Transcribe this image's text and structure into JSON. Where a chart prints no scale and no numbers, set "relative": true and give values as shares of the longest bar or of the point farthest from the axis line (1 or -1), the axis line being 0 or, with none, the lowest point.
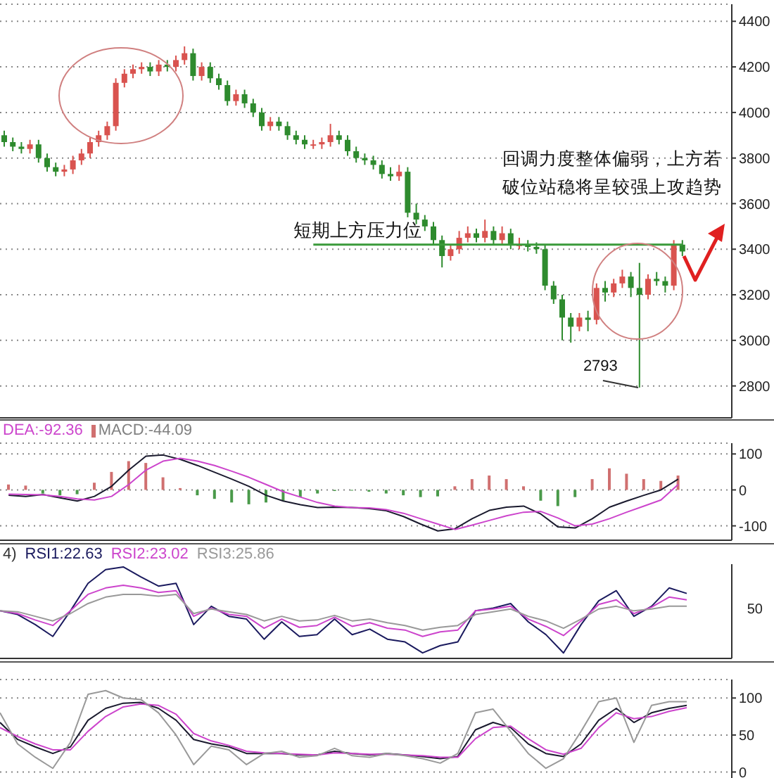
{
  "chart_data": [
    {
      "type": "candlestick",
      "categories": [
        null,
        null,
        null,
        null,
        null,
        null,
        null,
        null,
        null,
        null,
        null,
        null,
        null,
        null,
        null,
        null,
        null,
        null,
        null,
        null,
        null,
        null,
        null,
        null,
        null,
        null,
        null,
        null,
        null,
        null,
        null,
        null,
        null,
        null,
        null,
        null,
        null,
        null,
        null,
        null,
        null,
        null,
        null,
        null,
        null,
        null,
        null,
        null,
        null,
        null,
        null,
        null,
        null,
        null,
        null,
        null,
        null,
        null,
        null,
        null,
        null,
        null,
        null,
        null,
        null,
        null,
        null,
        null,
        null,
        null,
        null,
        null,
        null,
        null,
        null,
        null,
        null,
        null,
        null,
        null
      ],
      "ohlc": [
        [
          3900,
          3920,
          3850,
          3870
        ],
        [
          3870,
          3890,
          3830,
          3850
        ],
        [
          3850,
          3870,
          3820,
          3840
        ],
        [
          3840,
          3880,
          3820,
          3860
        ],
        [
          3860,
          3880,
          3780,
          3800
        ],
        [
          3800,
          3820,
          3740,
          3760
        ],
        [
          3760,
          3780,
          3720,
          3740
        ],
        [
          3740,
          3770,
          3720,
          3750
        ],
        [
          3750,
          3810,
          3730,
          3790
        ],
        [
          3790,
          3840,
          3770,
          3820
        ],
        [
          3820,
          3890,
          3800,
          3870
        ],
        [
          3870,
          3920,
          3850,
          3900
        ],
        [
          3900,
          3960,
          3880,
          3940
        ],
        [
          3940,
          4150,
          3920,
          4130
        ],
        [
          4130,
          4190,
          4110,
          4170
        ],
        [
          4170,
          4210,
          4150,
          4190
        ],
        [
          4190,
          4220,
          4170,
          4200
        ],
        [
          4200,
          4220,
          4160,
          4180
        ],
        [
          4180,
          4230,
          4160,
          4210
        ],
        [
          4210,
          4230,
          4180,
          4200
        ],
        [
          4200,
          4250,
          4180,
          4230
        ],
        [
          4230,
          4290,
          4210,
          4260
        ],
        [
          4260,
          4280,
          4140,
          4160
        ],
        [
          4160,
          4220,
          4140,
          4200
        ],
        [
          4200,
          4220,
          4130,
          4150
        ],
        [
          4150,
          4170,
          4100,
          4120
        ],
        [
          4120,
          4140,
          4030,
          4050
        ],
        [
          4050,
          4100,
          4030,
          4080
        ],
        [
          4080,
          4100,
          4020,
          4040
        ],
        [
          4040,
          4060,
          3980,
          4000
        ],
        [
          4000,
          4020,
          3920,
          3940
        ],
        [
          3940,
          3980,
          3920,
          3960
        ],
        [
          3960,
          3980,
          3920,
          3940
        ],
        [
          3940,
          3960,
          3880,
          3900
        ],
        [
          3900,
          3920,
          3860,
          3880
        ],
        [
          3880,
          3900,
          3840,
          3860
        ],
        [
          3860,
          3880,
          3840,
          3860
        ],
        [
          3860,
          3890,
          3840,
          3870
        ],
        [
          3870,
          3950,
          3850,
          3900
        ],
        [
          3900,
          3920,
          3860,
          3880
        ],
        [
          3880,
          3900,
          3810,
          3830
        ],
        [
          3830,
          3850,
          3780,
          3800
        ],
        [
          3800,
          3820,
          3770,
          3790
        ],
        [
          3790,
          3810,
          3750,
          3770
        ],
        [
          3770,
          3790,
          3710,
          3730
        ],
        [
          3730,
          3760,
          3700,
          3720
        ],
        [
          3720,
          3770,
          3700,
          3740
        ],
        [
          3740,
          3760,
          3540,
          3560
        ],
        [
          3560,
          3600,
          3510,
          3530
        ],
        [
          3530,
          3550,
          3480,
          3500
        ],
        [
          3500,
          3520,
          3420,
          3440
        ],
        [
          3440,
          3460,
          3320,
          3370
        ],
        [
          3370,
          3420,
          3350,
          3400
        ],
        [
          3400,
          3480,
          3380,
          3450
        ],
        [
          3450,
          3500,
          3430,
          3470
        ],
        [
          3470,
          3490,
          3430,
          3450
        ],
        [
          3450,
          3530,
          3430,
          3480
        ],
        [
          3480,
          3500,
          3420,
          3440
        ],
        [
          3440,
          3500,
          3420,
          3470
        ],
        [
          3470,
          3490,
          3400,
          3420
        ],
        [
          3420,
          3450,
          3400,
          3420
        ],
        [
          3420,
          3440,
          3390,
          3410
        ],
        [
          3410,
          3430,
          3380,
          3400
        ],
        [
          3400,
          3420,
          3220,
          3240
        ],
        [
          3240,
          3260,
          3160,
          3180
        ],
        [
          3180,
          3200,
          3000,
          3100
        ],
        [
          3100,
          3120,
          2990,
          3060
        ],
        [
          3060,
          3120,
          3040,
          3100
        ],
        [
          3100,
          3130,
          3040,
          3090
        ],
        [
          3090,
          3250,
          3070,
          3230
        ],
        [
          3230,
          3260,
          3170,
          3210
        ],
        [
          3210,
          3270,
          3190,
          3250
        ],
        [
          3250,
          3310,
          3230,
          3280
        ],
        [
          3280,
          3300,
          3190,
          3230
        ],
        [
          3230,
          3340,
          2793,
          3200
        ],
        [
          3200,
          3290,
          3180,
          3270
        ],
        [
          3270,
          3300,
          3240,
          3260
        ],
        [
          3260,
          3280,
          3210,
          3240
        ],
        [
          3240,
          3440,
          3220,
          3420
        ],
        [
          3420,
          3440,
          3370,
          3390
        ]
      ],
      "colors": [
        "#2e8b2e",
        "#2e8b2e",
        "#2e8b2e",
        "#d9534f",
        "#2e8b2e",
        "#2e8b2e",
        "#2e8b2e",
        "#d9534f",
        "#d9534f",
        "#d9534f",
        "#d9534f",
        "#d9534f",
        "#d9534f",
        "#d9534f",
        "#d9534f",
        "#d9534f",
        "#d9534f",
        "#2e8b2e",
        "#d9534f",
        "#2e8b2e",
        "#d9534f",
        "#d9534f",
        "#2e8b2e",
        "#d9534f",
        "#2e8b2e",
        "#2e8b2e",
        "#2e8b2e",
        "#d9534f",
        "#2e8b2e",
        "#2e8b2e",
        "#2e8b2e",
        "#d9534f",
        "#2e8b2e",
        "#2e8b2e",
        "#2e8b2e",
        "#2e8b2e",
        "#d9534f",
        "#d9534f",
        "#d9534f",
        "#2e8b2e",
        "#2e8b2e",
        "#2e8b2e",
        "#2e8b2e",
        "#2e8b2e",
        "#2e8b2e",
        "#2e8b2e",
        "#d9534f",
        "#2e8b2e",
        "#2e8b2e",
        "#2e8b2e",
        "#2e8b2e",
        "#2e8b2e",
        "#d9534f",
        "#d9534f",
        "#d9534f",
        "#2e8b2e",
        "#d9534f",
        "#2e8b2e",
        "#d9534f",
        "#2e8b2e",
        "#d9534f",
        "#2e8b2e",
        "#2e8b2e",
        "#2e8b2e",
        "#2e8b2e",
        "#2e8b2e",
        "#2e8b2e",
        "#d9534f",
        "#2e8b2e",
        "#d9534f",
        "#2e8b2e",
        "#d9534f",
        "#d9534f",
        "#2e8b2e",
        "#2e8b2e",
        "#d9534f",
        "#2e8b2e",
        "#2e8b2e",
        "#d9534f",
        "#2e8b2e"
      ],
      "ylim": [
        2660,
        4475
      ],
      "yticks": [
        2800,
        3000,
        3200,
        3400,
        3600,
        3800,
        4000,
        4200,
        4400
      ],
      "grid": "y",
      "tick_labels": "y",
      "ref_lines": [
        {
          "axis": "y",
          "value": 3420,
          "label": "短期上方压力位",
          "color": "#3a9a3a"
        }
      ],
      "annotations": [
        "回调力度整体偏弱，上方若破位站稳将呈较强上攻趋势",
        "2793"
      ]
    },
    {
      "type": "line",
      "categories": [
        null,
        null,
        null,
        null,
        null,
        null,
        null,
        null,
        null,
        null,
        null,
        null,
        null,
        null,
        null,
        null,
        null,
        null,
        null,
        null,
        null,
        null,
        null,
        null,
        null,
        null,
        null,
        null,
        null,
        null,
        null,
        null,
        null,
        null,
        null,
        null,
        null,
        null,
        null,
        null
      ],
      "series": [
        {
          "color": "#1a1a2e",
          "values": [
            -15,
            -18,
            -13,
            -22,
            -31,
            -18,
            10,
            55,
            94,
            97,
            85,
            68,
            49,
            30,
            10,
            -15,
            -31,
            -41,
            -49,
            -48,
            -49,
            -52,
            -58,
            -74,
            -95,
            -114,
            -108,
            -80,
            -57,
            -48,
            -45,
            -67,
            -103,
            -106,
            -80,
            -48,
            -31,
            -15,
            0,
            30
          ]
        },
        {
          "name": "DEA:-92.36",
          "color": "#cc44cc",
          "values": [
            -12,
            -13,
            -14,
            -18,
            -25,
            -28,
            -18,
            15,
            55,
            80,
            88,
            80,
            68,
            52,
            35,
            15,
            -5,
            -20,
            -35,
            -45,
            -49,
            -50,
            -55,
            -65,
            -80,
            -95,
            -110,
            -98,
            -85,
            -72,
            -62,
            -60,
            -78,
            -100,
            -95,
            -80,
            -62,
            -45,
            -28,
            15
          ]
        },
        {
          "name": "MACD:-44.09",
          "type": "bar",
          "color": "#d07070",
          "values": [
            15,
            12,
            -10,
            -15,
            -12,
            20,
            50,
            80,
            75,
            35,
            5,
            -15,
            -25,
            -35,
            -40,
            -35,
            -30,
            -20,
            -10,
            -3,
            -2,
            -5,
            -10,
            -15,
            -20,
            -18,
            10,
            30,
            40,
            30,
            10,
            -30,
            -45,
            -20,
            30,
            60,
            45,
            30,
            25,
            40
          ],
          "colors": [
            "#d07070",
            "#d07070",
            "#4a9a4a",
            "#4a9a4a",
            "#4a9a4a",
            "#d07070",
            "#d07070",
            "#d07070",
            "#d07070",
            "#d07070",
            "#d07070",
            "#4a9a4a",
            "#4a9a4a",
            "#4a9a4a",
            "#4a9a4a",
            "#4a9a4a",
            "#4a9a4a",
            "#4a9a4a",
            "#4a9a4a",
            "#4a9a4a",
            "#4a9a4a",
            "#4a9a4a",
            "#4a9a4a",
            "#4a9a4a",
            "#4a9a4a",
            "#4a9a4a",
            "#d07070",
            "#d07070",
            "#d07070",
            "#d07070",
            "#d07070",
            "#4a9a4a",
            "#4a9a4a",
            "#4a9a4a",
            "#d07070",
            "#d07070",
            "#d07070",
            "#d07070",
            "#d07070",
            "#d07070"
          ]
        }
      ],
      "ylim": [
        -140,
        130
      ],
      "yticks": [
        -100,
        0,
        100
      ],
      "grid": "y",
      "tick_labels": "y",
      "legend": "top left"
    },
    {
      "type": "line",
      "categories": [
        null,
        null,
        null,
        null,
        null,
        null,
        null,
        null,
        null,
        null,
        null,
        null,
        null,
        null,
        null,
        null,
        null,
        null,
        null,
        null,
        null,
        null,
        null,
        null,
        null,
        null,
        null,
        null,
        null,
        null,
        null,
        null,
        null,
        null,
        null,
        null,
        null,
        null,
        null,
        null
      ],
      "series": [
        {
          "name": "RSI1:22.63",
          "color": "#1a1a5e",
          "values": [
            0.52,
            0.48,
            0.37,
            0.24,
            0.52,
            0.82,
            0.97,
            1,
            0.89,
            0.79,
            0.82,
            0.37,
            0.57,
            0.46,
            0.43,
            0.21,
            0.4,
            0.24,
            0.26,
            0.43,
            0.26,
            0.32,
            0.21,
            0.18,
            0.06,
            0.14,
            0.18,
            0.52,
            0.55,
            0.6,
            0.4,
            0.26,
            0.06,
            0.37,
            0.63,
            0.74,
            0.46,
            0.57,
            0.77,
            0.71
          ]
        },
        {
          "name": "RSI2:23.02",
          "color": "#cc44cc",
          "values": [
            0.52,
            0.49,
            0.42,
            0.36,
            0.52,
            0.7,
            0.77,
            0.8,
            0.77,
            0.72,
            0.74,
            0.46,
            0.55,
            0.48,
            0.46,
            0.33,
            0.43,
            0.34,
            0.36,
            0.45,
            0.35,
            0.39,
            0.33,
            0.31,
            0.24,
            0.29,
            0.31,
            0.52,
            0.54,
            0.57,
            0.43,
            0.35,
            0.25,
            0.41,
            0.59,
            0.64,
            0.49,
            0.56,
            0.67,
            0.64
          ]
        },
        {
          "name": "RSI3:25.86",
          "color": "#999999",
          "values": [
            0.52,
            0.51,
            0.46,
            0.41,
            0.49,
            0.6,
            0.67,
            0.7,
            0.7,
            0.68,
            0.7,
            0.49,
            0.54,
            0.51,
            0.48,
            0.41,
            0.46,
            0.41,
            0.42,
            0.47,
            0.41,
            0.43,
            0.39,
            0.36,
            0.31,
            0.34,
            0.36,
            0.48,
            0.51,
            0.54,
            0.46,
            0.41,
            0.33,
            0.43,
            0.54,
            0.57,
            0.52,
            0.54,
            0.57,
            0.57
          ]
        }
      ],
      "relative": true,
      "tick_labels": false,
      "legend": "top left",
      "annotations": [
        "4)",
        "50"
      ]
    },
    {
      "type": "line",
      "categories": [
        null,
        null,
        null,
        null,
        null,
        null,
        null,
        null,
        null,
        null,
        null,
        null,
        null,
        null,
        null,
        null,
        null,
        null,
        null,
        null,
        null,
        null,
        null,
        null,
        null,
        null,
        null,
        null,
        null,
        null,
        null,
        null,
        null,
        null,
        null,
        null,
        null,
        null,
        null,
        null
      ],
      "series": [
        {
          "color": "#1a1a2e",
          "values": [
            67,
            44,
            34,
            25,
            34,
            70,
            86,
            93,
            94,
            86,
            70,
            44,
            38,
            34,
            25,
            25,
            25,
            23,
            23,
            28,
            25,
            23,
            25,
            23,
            21,
            18,
            21,
            57,
            67,
            60,
            38,
            25,
            21,
            38,
            70,
            86,
            67,
            80,
            86,
            90
          ]
        },
        {
          "color": "#cc44cc",
          "values": [
            60,
            48,
            38,
            30,
            30,
            55,
            75,
            88,
            92,
            90,
            78,
            52,
            42,
            36,
            28,
            26,
            25,
            24,
            23,
            26,
            25,
            24,
            24,
            23,
            22,
            20,
            20,
            45,
            60,
            62,
            45,
            30,
            24,
            32,
            60,
            80,
            72,
            75,
            82,
            87
          ]
        },
        {
          "color": "#999999",
          "values": [
            80,
            38,
            20,
            5,
            40,
            105,
            110,
            100,
            98,
            80,
            50,
            10,
            35,
            30,
            10,
            25,
            28,
            20,
            22,
            32,
            22,
            20,
            25,
            22,
            18,
            12,
            25,
            80,
            85,
            55,
            25,
            5,
            18,
            55,
            95,
            100,
            40,
            90,
            95,
            95
          ]
        }
      ],
      "ylim": [
        -10,
        125
      ],
      "yticks": [
        0,
        50,
        100
      ],
      "grid": "y",
      "tick_labels": "y"
    }
  ]
}
